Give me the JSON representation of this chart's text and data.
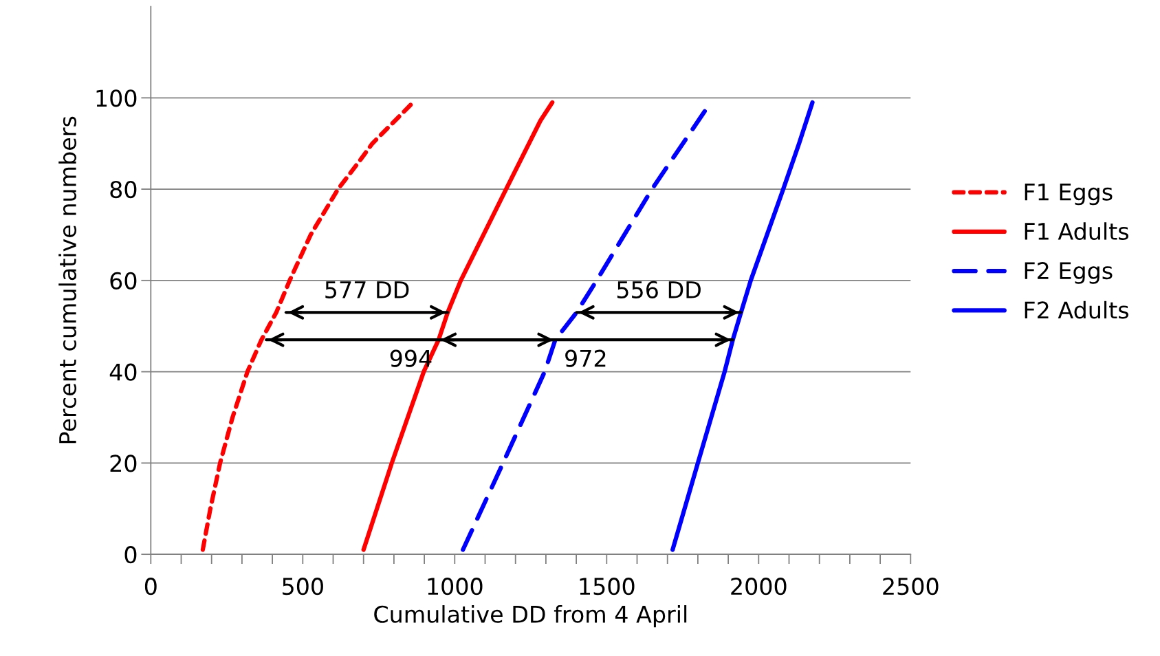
{
  "chart_data": {
    "type": "line",
    "xlabel": "Cumulative DD from 4 April",
    "ylabel": "Percent cumulative numbers",
    "xlim": [
      0,
      2500
    ],
    "ylim": [
      0,
      120
    ],
    "xticks": [
      0,
      {
        "value": 100,
        "label": null
      },
      {
        "value": 200,
        "label": null
      },
      {
        "value": 300,
        "label": null
      },
      {
        "value": 400,
        "label": null
      },
      500,
      {
        "value": 600,
        "label": null
      },
      {
        "value": 700,
        "label": null
      },
      {
        "value": 800,
        "label": null
      },
      {
        "value": 900,
        "label": null
      },
      1000,
      {
        "value": 1100,
        "label": null
      },
      {
        "value": 1200,
        "label": null
      },
      {
        "value": 1300,
        "label": null
      },
      {
        "value": 1400,
        "label": null
      },
      1500,
      {
        "value": 1600,
        "label": null
      },
      {
        "value": 1700,
        "label": null
      },
      {
        "value": 1800,
        "label": null
      },
      {
        "value": 1900,
        "label": null
      },
      2000,
      {
        "value": 2100,
        "label": null
      },
      {
        "value": 2200,
        "label": null
      },
      {
        "value": 2300,
        "label": null
      },
      {
        "value": 2400,
        "label": null
      },
      2500
    ],
    "yticks": [
      0,
      20,
      40,
      60,
      80,
      100
    ],
    "grid": "y",
    "legend": "right",
    "marker": "none",
    "series": [
      {
        "name": "F1 Eggs",
        "color": "#ff0000",
        "line_style": "dotted",
        "x": [
          171,
          196,
          228,
          269,
          318,
          364,
          413,
          457,
          526,
          616,
          685,
          729,
          863
        ],
        "values": [
          1,
          10,
          20,
          30,
          40,
          47,
          53,
          60,
          70,
          80,
          86,
          90,
          99
        ]
      },
      {
        "name": "F1 Adults",
        "color": "#ff0000",
        "line_style": "solid",
        "x": [
          700,
          793,
          898,
          947,
          977,
          1020,
          1169,
          1282,
          1321
        ],
        "values": [
          1,
          20,
          40,
          47,
          53,
          60,
          80,
          95,
          99
        ]
      },
      {
        "name": "F2 Eggs",
        "color": "#0000ff",
        "line_style": "dashed",
        "x": [
          1027,
          1159,
          1296,
          1331,
          1401,
          1467,
          1649,
          1827
        ],
        "values": [
          1,
          20,
          40,
          47,
          53,
          60,
          80,
          97.5
        ]
      },
      {
        "name": "F2 Adults",
        "color": "#0000ff",
        "line_style": "solid",
        "x": [
          1717,
          1800,
          1888,
          1915,
          1942,
          1974,
          2081,
          2133,
          2177
        ],
        "values": [
          1,
          20,
          40,
          47,
          53,
          60,
          80,
          90,
          99
        ]
      },
      {
        "type": "line",
        "color": "#000000",
        "line_style": "solid",
        "x": [
          445,
          977
        ],
        "values": [
          53,
          53
        ]
      },
      {
        "type": "line",
        "color": "#000000",
        "line_style": "solid",
        "x": [
          380,
          1331
        ],
        "values": [
          47,
          47
        ]
      },
      {
        "type": "line",
        "color": "#000000",
        "line_style": "solid",
        "x": [
          947,
          1915
        ],
        "values": [
          47,
          47
        ]
      },
      {
        "type": "line",
        "color": "#000000",
        "line_style": "solid",
        "x": [
          1401,
          1942
        ],
        "values": [
          53,
          53
        ]
      }
    ],
    "annotations": [
      "577 DD",
      "994",
      "972",
      "556 DD"
    ]
  }
}
